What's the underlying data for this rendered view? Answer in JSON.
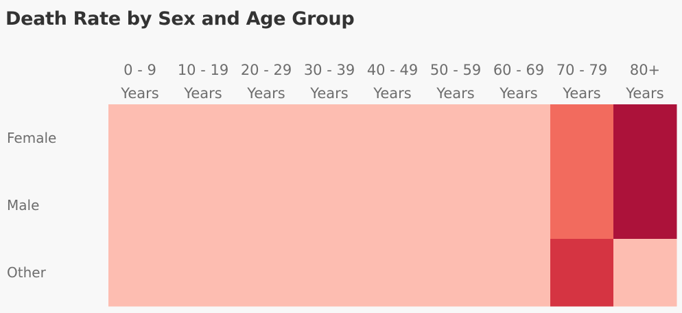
{
  "chart_data": {
    "type": "heatmap",
    "title": "Death Rate by Sex and Age Group",
    "x_categories": [
      [
        "0 - 9",
        "Years"
      ],
      [
        "10 - 19",
        "Years"
      ],
      [
        "20 - 29",
        "Years"
      ],
      [
        "30 - 39",
        "Years"
      ],
      [
        "40 - 49",
        "Years"
      ],
      [
        "50 - 59",
        "Years"
      ],
      [
        "60 - 69",
        "Years"
      ],
      [
        "70 - 79",
        "Years"
      ],
      [
        "80+",
        "Years"
      ]
    ],
    "y_categories": [
      "Female",
      "Male",
      "Other"
    ],
    "values": [
      [
        0,
        0,
        0,
        0,
        0,
        0,
        0,
        0.45,
        1.0
      ],
      [
        0,
        0,
        0,
        0,
        0,
        0,
        0,
        0.45,
        1.0
      ],
      [
        0,
        0,
        0,
        0,
        0,
        0,
        0,
        0.75,
        0
      ]
    ],
    "color_scale": [
      "#fdbdb1",
      "#fb836c",
      "#e23f45",
      "#ac123a"
    ],
    "legend": "none"
  }
}
